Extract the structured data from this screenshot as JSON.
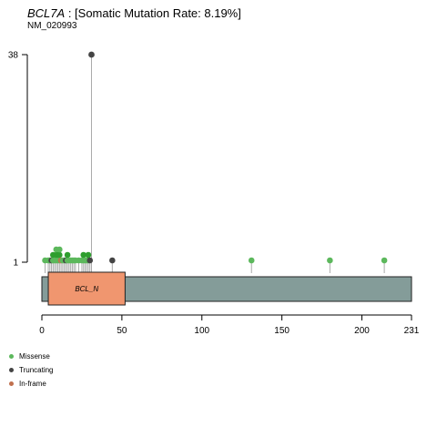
{
  "header": {
    "gene": "BCL7A",
    "rate_text": " : [Somatic Mutation Rate: 8.19%]",
    "transcript": "NM_020993"
  },
  "colors": {
    "missense": "#5cb85c",
    "missense_dark": "#2e9e2e",
    "truncating": "#444444",
    "inframe": "#c0704e",
    "protein_bar": "#849c99",
    "domain": "#f0966f",
    "stem": "#aaaaaa"
  },
  "chart_data": {
    "type": "lollipop",
    "x_ticks": [
      0,
      50,
      100,
      150,
      200,
      231
    ],
    "y_ticks": [
      1,
      38
    ],
    "xlim": [
      0,
      231
    ],
    "protein_length": 231,
    "domains": [
      {
        "name": "BCL_N",
        "start": 4,
        "end": 52
      }
    ],
    "legend": [
      {
        "label": "Missense",
        "type": "missense"
      },
      {
        "label": "Truncating",
        "type": "truncating"
      },
      {
        "label": "In-frame",
        "type": "inframe"
      }
    ],
    "mutations": [
      {
        "pos": 2,
        "count": 1,
        "type": "missense"
      },
      {
        "pos": 4,
        "count": 1,
        "type": "missense"
      },
      {
        "pos": 5,
        "count": 1,
        "type": "missense"
      },
      {
        "pos": 6,
        "count": 1,
        "type": "truncating"
      },
      {
        "pos": 7,
        "count": 2,
        "type": "missense"
      },
      {
        "pos": 8,
        "count": 1,
        "type": "missense"
      },
      {
        "pos": 9,
        "count": 3,
        "type": "missense"
      },
      {
        "pos": 10,
        "count": 2,
        "type": "missense"
      },
      {
        "pos": 11,
        "count": 3,
        "type": "missense"
      },
      {
        "pos": 12,
        "count": 1,
        "type": "inframe"
      },
      {
        "pos": 13,
        "count": 1,
        "type": "missense"
      },
      {
        "pos": 14,
        "count": 1,
        "type": "missense"
      },
      {
        "pos": 15,
        "count": 1,
        "type": "truncating"
      },
      {
        "pos": 16,
        "count": 2,
        "type": "missense"
      },
      {
        "pos": 17,
        "count": 1,
        "type": "missense"
      },
      {
        "pos": 18,
        "count": 1,
        "type": "missense"
      },
      {
        "pos": 19,
        "count": 1,
        "type": "missense"
      },
      {
        "pos": 20,
        "count": 1,
        "type": "missense"
      },
      {
        "pos": 21,
        "count": 1,
        "type": "missense"
      },
      {
        "pos": 23,
        "count": 1,
        "type": "missense"
      },
      {
        "pos": 25,
        "count": 1,
        "type": "missense"
      },
      {
        "pos": 26,
        "count": 2,
        "type": "missense"
      },
      {
        "pos": 27,
        "count": 1,
        "type": "missense"
      },
      {
        "pos": 28,
        "count": 1,
        "type": "missense"
      },
      {
        "pos": 29,
        "count": 2,
        "type": "missense"
      },
      {
        "pos": 30,
        "count": 1,
        "type": "truncating"
      },
      {
        "pos": 31,
        "count": 38,
        "type": "truncating"
      },
      {
        "pos": 44,
        "count": 1,
        "type": "truncating"
      },
      {
        "pos": 131,
        "count": 1,
        "type": "missense"
      },
      {
        "pos": 180,
        "count": 1,
        "type": "missense"
      },
      {
        "pos": 214,
        "count": 1,
        "type": "missense"
      }
    ]
  }
}
